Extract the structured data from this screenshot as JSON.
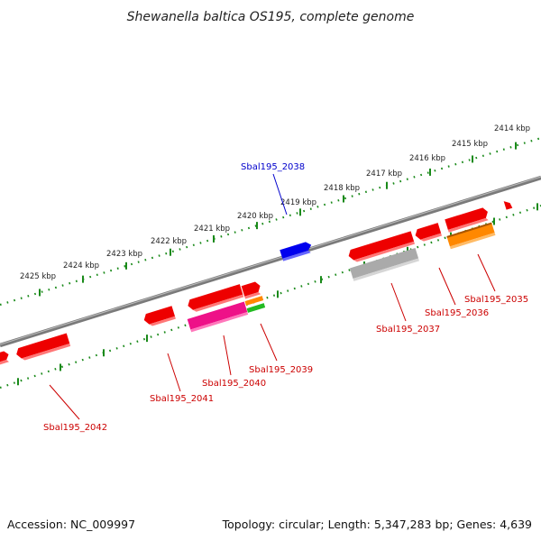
{
  "title": "Shewanella baltica OS195, complete genome",
  "footer": {
    "accession": "Accession: NC_009997",
    "stats": "Topology: circular; Length: 5,347,283 bp; Genes: 4,639"
  },
  "colors": {
    "backbone": "#888888",
    "ticks": "#1a8a1a",
    "label_default": "#cc0000",
    "label_highlight": "#0000cc",
    "gene_red": "#ee0000",
    "gene_blue": "#0000ee",
    "gene_gray": "#aaaaaa",
    "gene_orange": "#ff8800",
    "gene_magenta": "#ee1188",
    "gene_green": "#22bb22"
  },
  "ruler": {
    "kbp_labels": [
      "2425 kbp",
      "2424 kbp",
      "2423 kbp",
      "2422 kbp",
      "2421 kbp",
      "2420 kbp",
      "2419 kbp",
      "2418 kbp",
      "2417 kbp",
      "2416 kbp",
      "2415 kbp",
      "2414 kbp"
    ]
  },
  "gene_labels": [
    {
      "id": "g2042",
      "text": "Sbal195_2042",
      "color": "#cc0000"
    },
    {
      "id": "g2041",
      "text": "Sbal195_2041",
      "color": "#cc0000"
    },
    {
      "id": "g2040",
      "text": "Sbal195_2040",
      "color": "#cc0000"
    },
    {
      "id": "g2039",
      "text": "Sbal195_2039",
      "color": "#cc0000"
    },
    {
      "id": "g2038",
      "text": "Sbal195_2038",
      "color": "#0000cc"
    },
    {
      "id": "g2037",
      "text": "Sbal195_2037",
      "color": "#cc0000"
    },
    {
      "id": "g2036",
      "text": "Sbal195_2036",
      "color": "#cc0000"
    },
    {
      "id": "g2035",
      "text": "Sbal195_2035",
      "color": "#cc0000"
    }
  ]
}
